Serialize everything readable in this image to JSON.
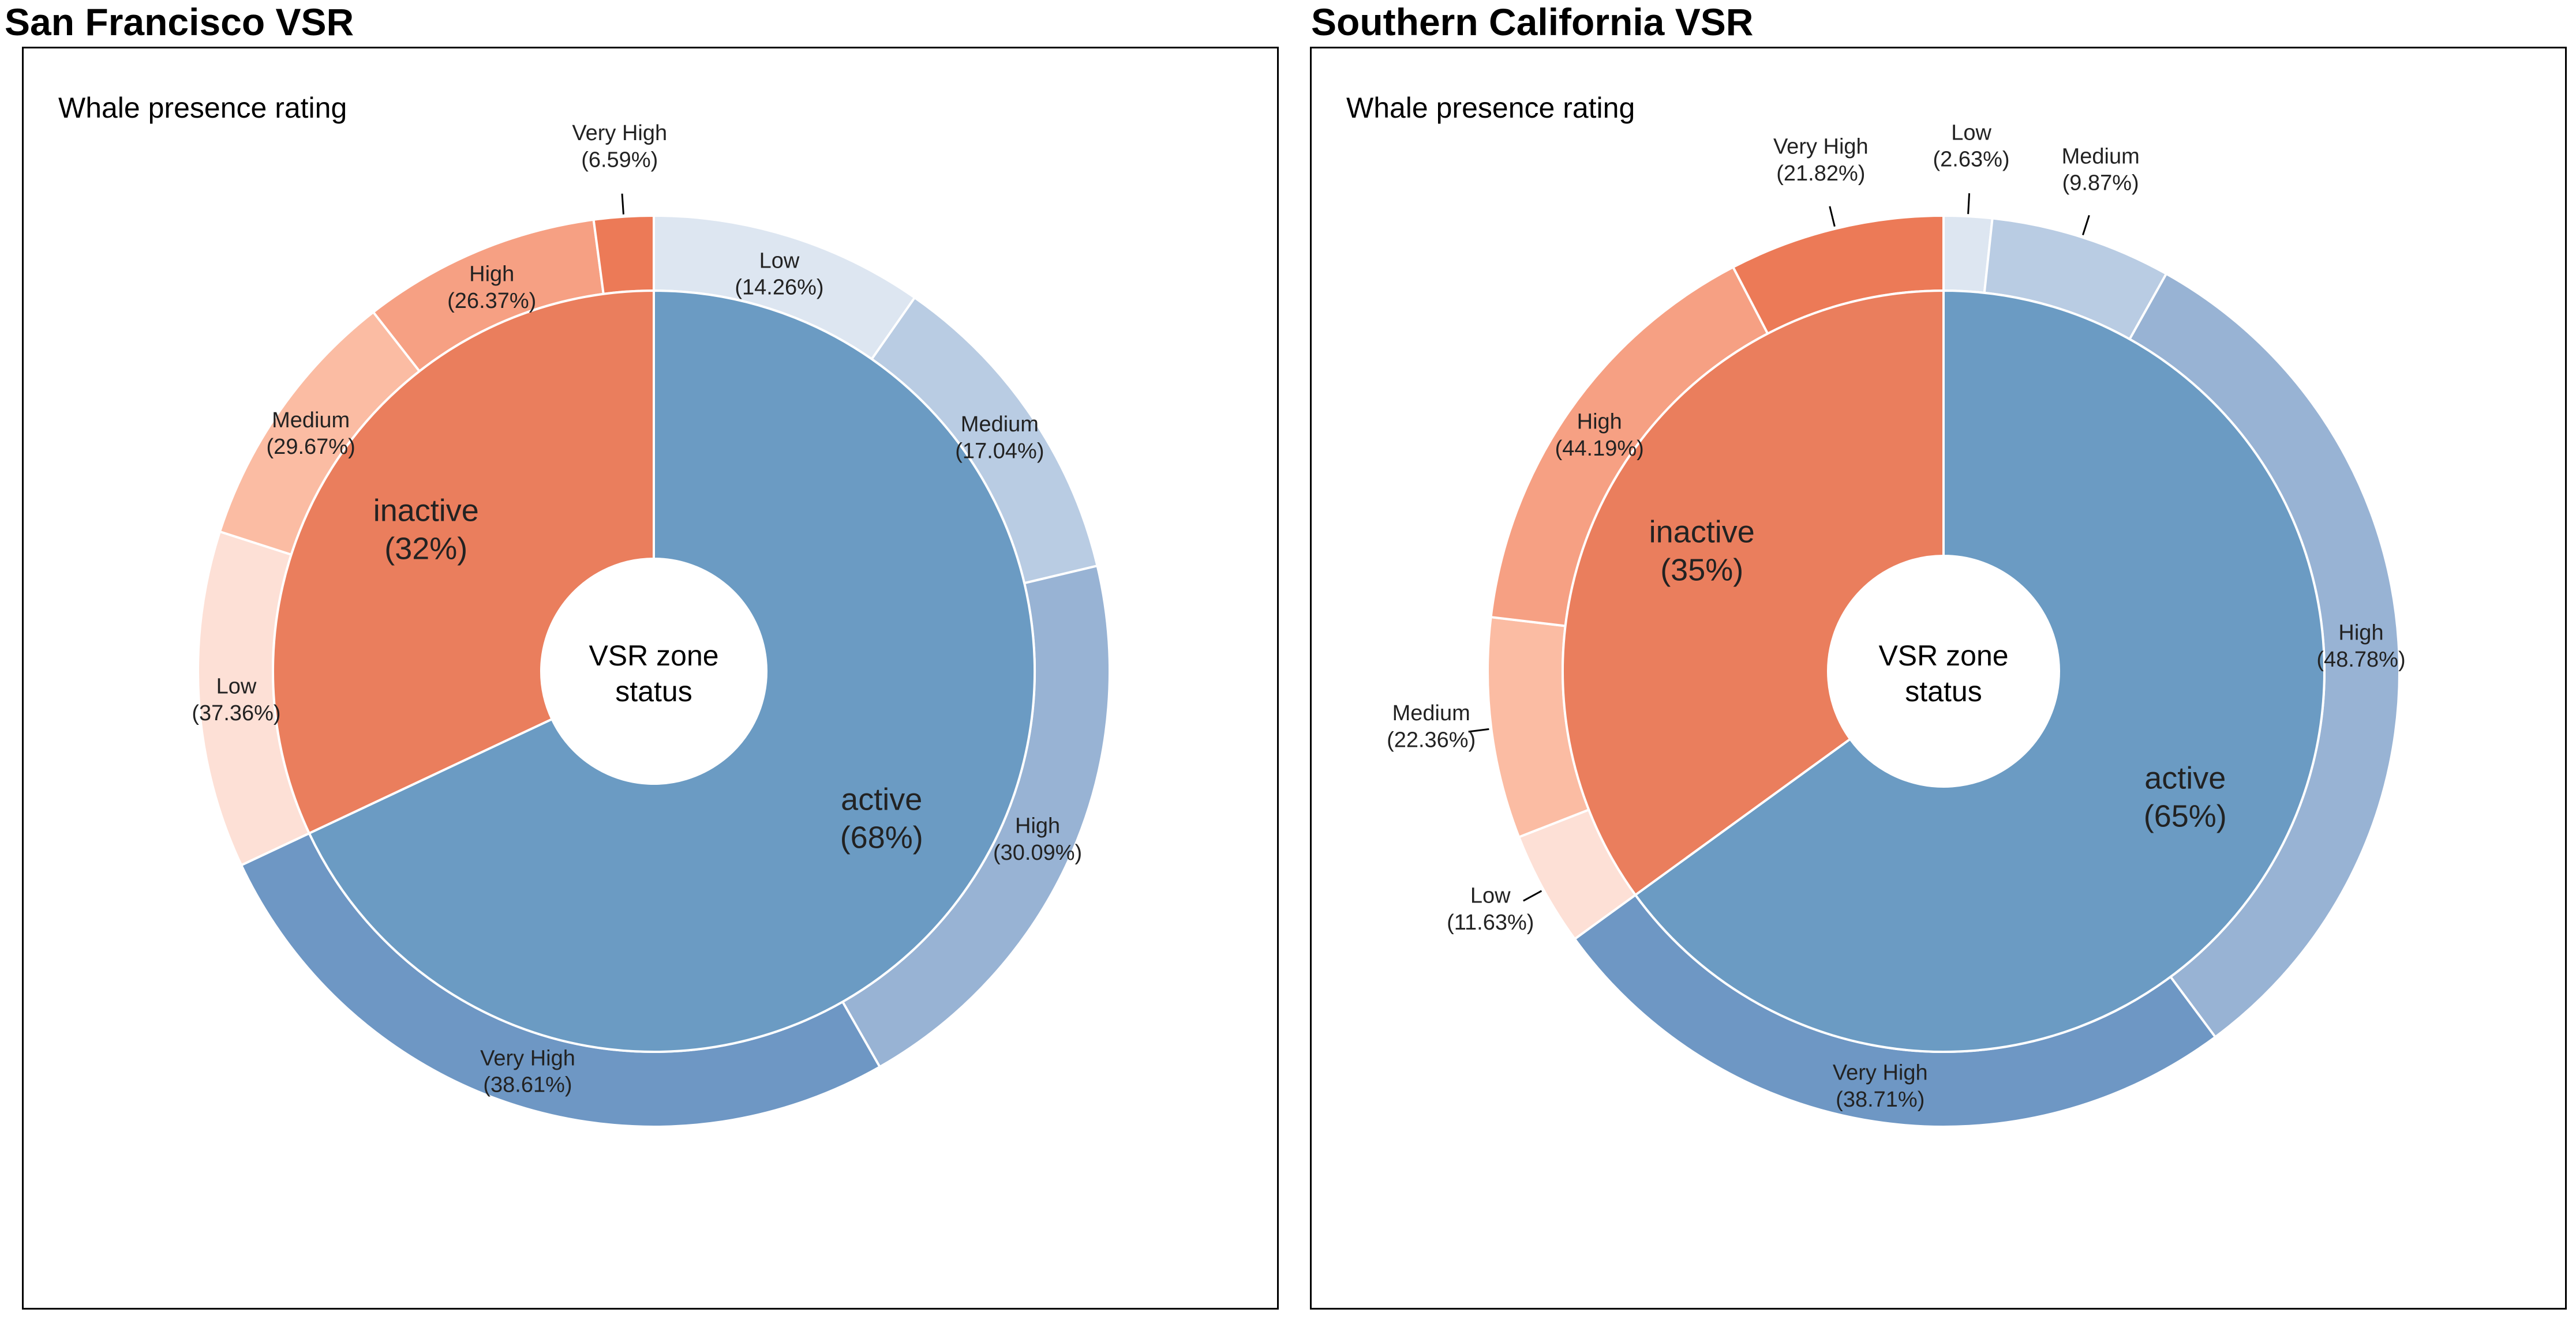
{
  "charts": [
    {
      "title": "San Francisco VSR",
      "chart_data": {
        "type": "pie",
        "subtype": "sunburst",
        "legend_title": "Whale presence rating",
        "center_label_line1": "VSR zone",
        "center_label_line2": "status",
        "inner": [
          {
            "name": "active",
            "label": "(68%)",
            "value": 68,
            "color": "#6b9bc3"
          },
          {
            "name": "inactive",
            "label": "(32%)",
            "value": 32,
            "color": "#ea7e5d"
          }
        ],
        "outer": [
          {
            "parent": "active",
            "name": "Low",
            "label": "(14.26%)",
            "value": 14.26,
            "color": "#dde6f1"
          },
          {
            "parent": "active",
            "name": "Medium",
            "label": "(17.04%)",
            "value": 17.04,
            "color": "#b9cce3"
          },
          {
            "parent": "active",
            "name": "High",
            "label": "(30.09%)",
            "value": 30.09,
            "color": "#98b3d4"
          },
          {
            "parent": "active",
            "name": "Very High",
            "label": "(38.61%)",
            "value": 38.61,
            "color": "#6e97c4"
          },
          {
            "parent": "inactive",
            "name": "Low",
            "label": "(37.36%)",
            "value": 37.36,
            "color": "#fde0d6"
          },
          {
            "parent": "inactive",
            "name": "Medium",
            "label": "(29.67%)",
            "value": 29.67,
            "color": "#fbbca3"
          },
          {
            "parent": "inactive",
            "name": "High",
            "label": "(26.37%)",
            "value": 26.37,
            "color": "#f6a083"
          },
          {
            "parent": "inactive",
            "name": "Very High",
            "label": "(6.59%)",
            "value": 6.59,
            "color": "#ec7a57"
          }
        ]
      }
    },
    {
      "title": "Southern California VSR",
      "chart_data": {
        "type": "pie",
        "subtype": "sunburst",
        "legend_title": "Whale presence rating",
        "center_label_line1": "VSR zone",
        "center_label_line2": "status",
        "inner": [
          {
            "name": "active",
            "label": "(65%)",
            "value": 65,
            "color": "#6b9bc3"
          },
          {
            "name": "inactive",
            "label": "(35%)",
            "value": 35,
            "color": "#ea7e5d"
          }
        ],
        "outer": [
          {
            "parent": "active",
            "name": "Low",
            "label": "(2.63%)",
            "value": 2.63,
            "color": "#dde6f1"
          },
          {
            "parent": "active",
            "name": "Medium",
            "label": "(9.87%)",
            "value": 9.87,
            "color": "#b9cce3"
          },
          {
            "parent": "active",
            "name": "High",
            "label": "(48.78%)",
            "value": 48.78,
            "color": "#98b3d4"
          },
          {
            "parent": "active",
            "name": "Very High",
            "label": "(38.71%)",
            "value": 38.71,
            "color": "#6e97c4"
          },
          {
            "parent": "inactive",
            "name": "Low",
            "label": "(11.63%)",
            "value": 11.63,
            "color": "#fde0d6"
          },
          {
            "parent": "inactive",
            "name": "Medium",
            "label": "(22.36%)",
            "value": 22.36,
            "color": "#fbbca3"
          },
          {
            "parent": "inactive",
            "name": "High",
            "label": "(44.19%)",
            "value": 44.19,
            "color": "#f6a083"
          },
          {
            "parent": "inactive",
            "name": "Very High",
            "label": "(21.82%)",
            "value": 21.82,
            "color": "#ec7a57"
          }
        ]
      }
    }
  ]
}
